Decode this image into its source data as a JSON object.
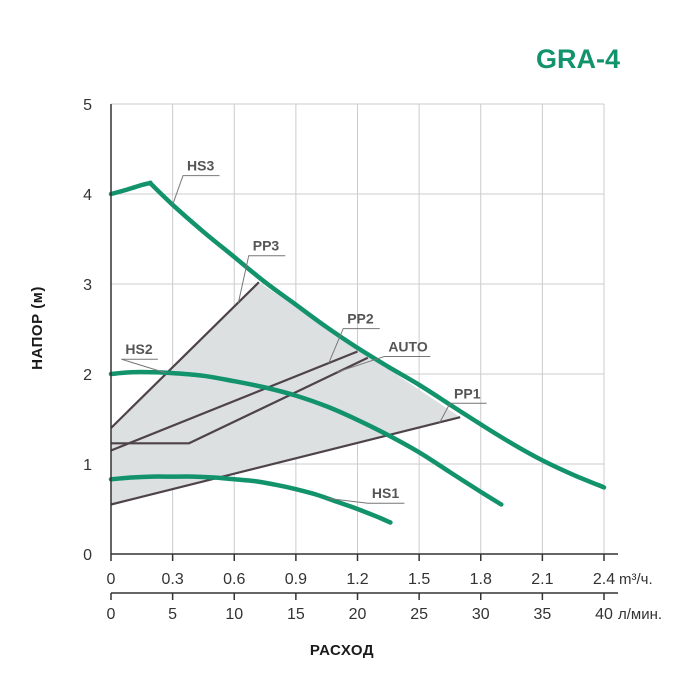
{
  "chart_data": {
    "type": "line",
    "title": "GRA-4",
    "ylabel": "НАПОР (м)",
    "xlabel": "РАСХОД",
    "x_unit_primary": "m³/ч.",
    "x_unit_secondary": "л/мин.",
    "ylim": [
      0,
      5
    ],
    "xlim": [
      0,
      2.4
    ],
    "y_ticks": [
      "0",
      "1",
      "2",
      "3",
      "4",
      "5"
    ],
    "x_ticks_primary": [
      "0",
      "0.3",
      "0.6",
      "0.9",
      "1.2",
      "1.5",
      "1.8",
      "2.1",
      "2.4"
    ],
    "x_ticks_secondary": [
      "0",
      "5",
      "10",
      "15",
      "20",
      "25",
      "30",
      "35",
      "40"
    ],
    "grid": true,
    "colors": {
      "curve": "#12936b",
      "line": "#4d4348",
      "fill": "#dde0e1",
      "grid": "#cccccc",
      "title": "#12936b"
    },
    "region": {
      "name": "",
      "x": [
        0,
        0,
        0.72,
        1.7,
        0
      ],
      "y": [
        0.55,
        1.4,
        3.02,
        1.52,
        0.55
      ]
    },
    "series": [
      {
        "name": "HS3",
        "kind": "curve",
        "x": [
          0,
          0.08,
          0.15,
          0.19,
          0.2,
          0.3,
          0.45,
          0.6,
          0.75,
          0.9,
          1.05,
          1.2,
          1.35,
          1.5,
          1.65,
          1.8,
          1.95,
          2.1,
          2.25,
          2.4
        ],
        "y": [
          4.0,
          4.05,
          4.1,
          4.12,
          4.1,
          3.88,
          3.58,
          3.3,
          3.02,
          2.77,
          2.52,
          2.29,
          2.08,
          1.88,
          1.66,
          1.44,
          1.23,
          1.04,
          0.88,
          0.74
        ]
      },
      {
        "name": "HS2",
        "kind": "curve",
        "x": [
          0,
          0.1,
          0.2,
          0.3,
          0.45,
          0.6,
          0.75,
          0.9,
          1.05,
          1.2,
          1.35,
          1.5,
          1.65,
          1.8,
          1.9
        ],
        "y": [
          2.0,
          2.02,
          2.02,
          2.01,
          1.98,
          1.92,
          1.85,
          1.76,
          1.64,
          1.49,
          1.32,
          1.13,
          0.91,
          0.69,
          0.55
        ]
      },
      {
        "name": "HS1",
        "kind": "curve",
        "x": [
          0,
          0.1,
          0.2,
          0.3,
          0.4,
          0.5,
          0.6,
          0.7,
          0.8,
          0.9,
          1.0,
          1.1,
          1.2,
          1.3,
          1.36
        ],
        "y": [
          0.83,
          0.85,
          0.86,
          0.86,
          0.86,
          0.85,
          0.83,
          0.81,
          0.77,
          0.72,
          0.66,
          0.58,
          0.5,
          0.41,
          0.35
        ]
      },
      {
        "name": "PP3",
        "kind": "line",
        "x": [
          0,
          0.72
        ],
        "y": [
          1.4,
          3.02
        ]
      },
      {
        "name": "PP2",
        "kind": "line",
        "x": [
          0,
          1.2
        ],
        "y": [
          1.15,
          2.25
        ]
      },
      {
        "name": "AUTO",
        "kind": "line",
        "x": [
          0,
          0.38,
          1.25
        ],
        "y": [
          1.23,
          1.23,
          2.18
        ]
      },
      {
        "name": "PP1",
        "kind": "line",
        "x": [
          0,
          1.7
        ],
        "y": [
          0.55,
          1.52
        ]
      }
    ],
    "annotations": [
      {
        "text": "HS3",
        "series": "HS3",
        "at_x": 0.3,
        "at_y": 3.88,
        "label_x": 0.37,
        "label_y": 4.26,
        "anchor": "start"
      },
      {
        "text": "PP3",
        "series": "PP3",
        "at_x": 0.62,
        "at_y": 2.79,
        "label_x": 0.69,
        "label_y": 3.37,
        "anchor": "start"
      },
      {
        "text": "PP2",
        "series": "PP2",
        "at_x": 1.06,
        "at_y": 2.12,
        "label_x": 1.15,
        "label_y": 2.56,
        "anchor": "start"
      },
      {
        "text": "AUTO",
        "series": "AUTO",
        "at_x": 1.1,
        "at_y": 2.02,
        "label_x": 1.35,
        "label_y": 2.25,
        "anchor": "start"
      },
      {
        "text": "HS2",
        "series": "HS2",
        "at_x": 0.27,
        "at_y": 2.01,
        "label_x": 0.07,
        "label_y": 2.22,
        "anchor": "start"
      },
      {
        "text": "PP1",
        "series": "PP1",
        "at_x": 1.6,
        "at_y": 1.46,
        "label_x": 1.67,
        "label_y": 1.73,
        "anchor": "start"
      },
      {
        "text": "HS1",
        "series": "HS1",
        "at_x": 1.05,
        "at_y": 0.62,
        "label_x": 1.27,
        "label_y": 0.62,
        "anchor": "start"
      }
    ]
  }
}
